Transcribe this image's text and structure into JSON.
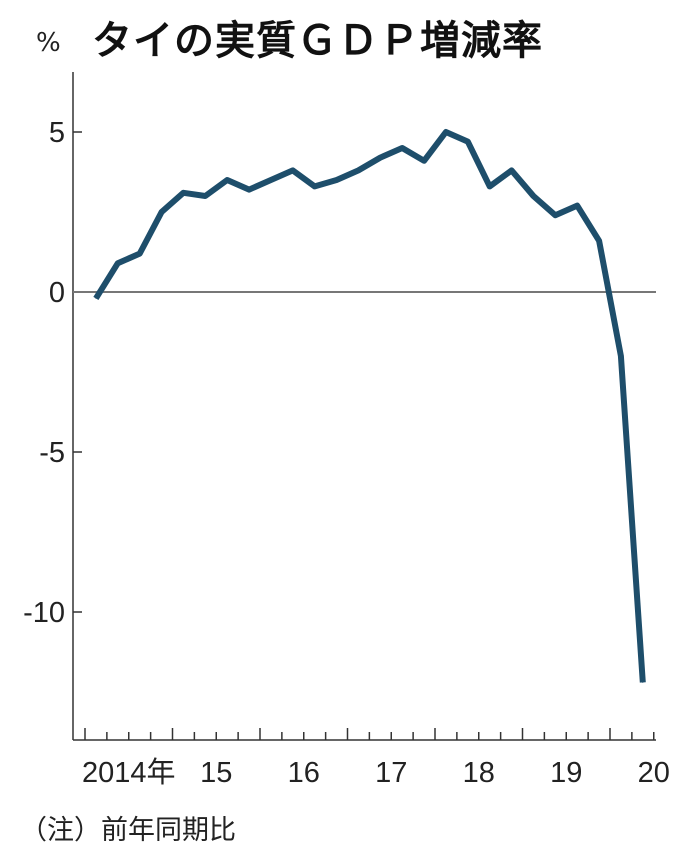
{
  "title": "タイの実質ＧＤＰ増減率",
  "unit_label": "%",
  "note": "（注）前年同期比",
  "chart_data": {
    "type": "line",
    "title": "タイの実質ＧＤＰ増減率",
    "ylabel": "%",
    "xlabel": "",
    "ylim": [
      -13.5,
      6.5
    ],
    "xlim": [
      2014.0,
      2020.5
    ],
    "yticks": [
      5,
      0,
      -5,
      -10
    ],
    "ytick_labels": [
      "5",
      "0",
      "-5",
      "-10"
    ],
    "xticks": [
      2014.0,
      2015.0,
      2016.0,
      2017.0,
      2018.0,
      2019.0,
      2020.0
    ],
    "xtick_labels": [
      "2014年",
      "15",
      "16",
      "17",
      "18",
      "19",
      "20"
    ],
    "zero_line": true,
    "line_color": "#1e4e6b",
    "series": [
      {
        "x": [
          2014.125,
          2014.375,
          2014.625,
          2014.875,
          2015.125,
          2015.375,
          2015.625,
          2015.875,
          2016.125,
          2016.375,
          2016.625,
          2016.875,
          2017.125,
          2017.375,
          2017.625,
          2017.875,
          2018.125,
          2018.375,
          2018.625,
          2018.875,
          2019.125,
          2019.375,
          2019.625,
          2019.875,
          2020.125,
          2020.375
        ],
        "values": [
          -0.2,
          0.9,
          1.2,
          2.5,
          3.1,
          3.0,
          3.5,
          3.2,
          3.5,
          3.8,
          3.3,
          3.5,
          3.8,
          4.2,
          4.5,
          4.1,
          5.0,
          4.7,
          3.3,
          3.8,
          3.0,
          2.4,
          2.7,
          1.6,
          -2.0,
          -12.2
        ]
      }
    ]
  }
}
